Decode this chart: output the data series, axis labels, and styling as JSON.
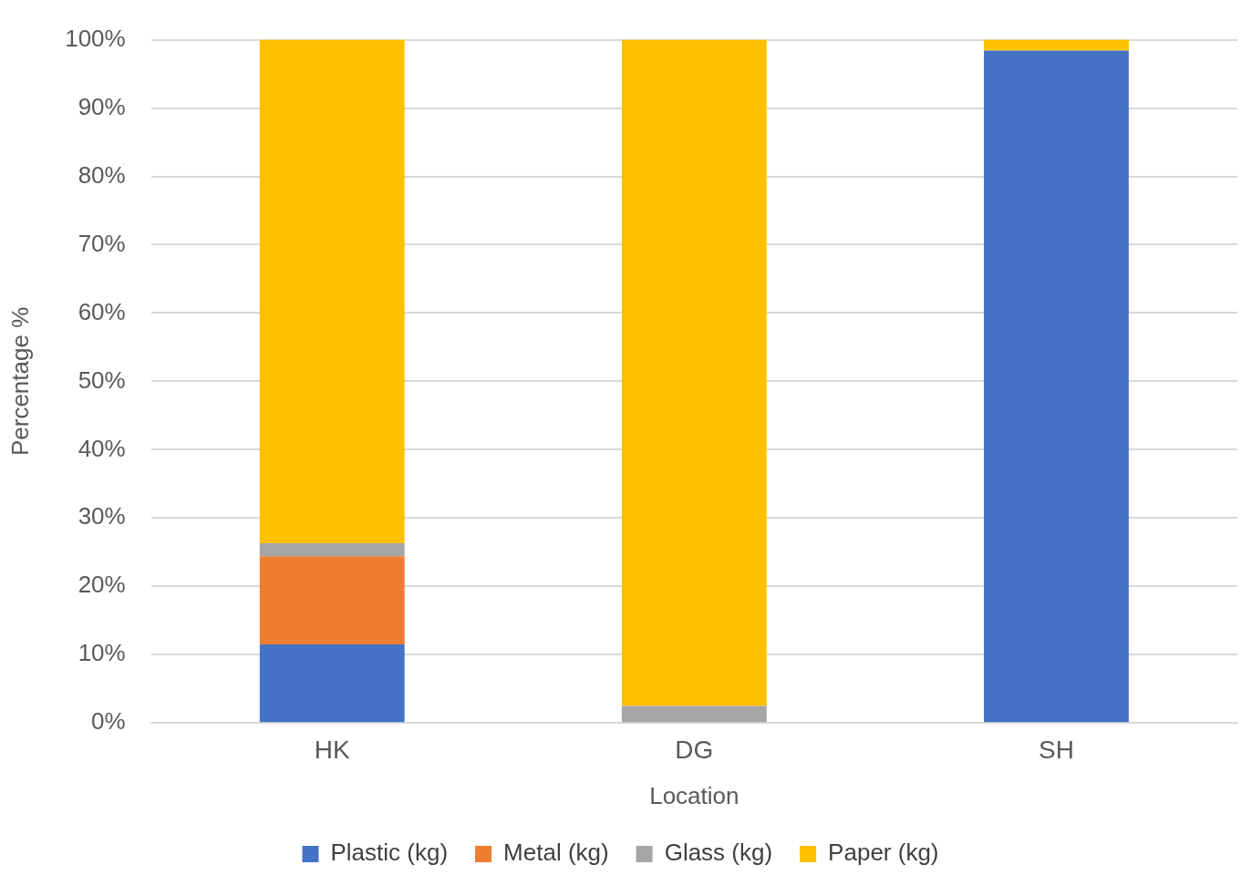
{
  "chart_data": {
    "type": "bar",
    "stacked": true,
    "xlabel": "Location",
    "ylabel": "Percentage %",
    "categories": [
      "HK",
      "DG",
      "SH"
    ],
    "series": [
      {
        "name": "Plastic (kg)",
        "color": "#4472c4",
        "values": [
          11.5,
          0,
          98.4
        ]
      },
      {
        "name": "Metal (kg)",
        "color": "#ed7d31",
        "values": [
          12.9,
          0,
          0
        ]
      },
      {
        "name": "Glass (kg)",
        "color": "#a5a5a5",
        "values": [
          1.9,
          2.5,
          0
        ]
      },
      {
        "name": "Paper (kg)",
        "color": "#ffc000",
        "values": [
          73.7,
          97.5,
          1.6
        ]
      }
    ],
    "ylim": [
      0,
      100
    ],
    "yticks": [
      {
        "value": 0,
        "label": "0%"
      },
      {
        "value": 10,
        "label": "10%"
      },
      {
        "value": 20,
        "label": "20%"
      },
      {
        "value": 30,
        "label": "30%"
      },
      {
        "value": 40,
        "label": "40%"
      },
      {
        "value": 50,
        "label": "50%"
      },
      {
        "value": 60,
        "label": "60%"
      },
      {
        "value": 70,
        "label": "70%"
      },
      {
        "value": 80,
        "label": "80%"
      },
      {
        "value": 90,
        "label": "90%"
      },
      {
        "value": 100,
        "label": "100%"
      }
    ],
    "grid": "y",
    "legend": "bottom"
  }
}
